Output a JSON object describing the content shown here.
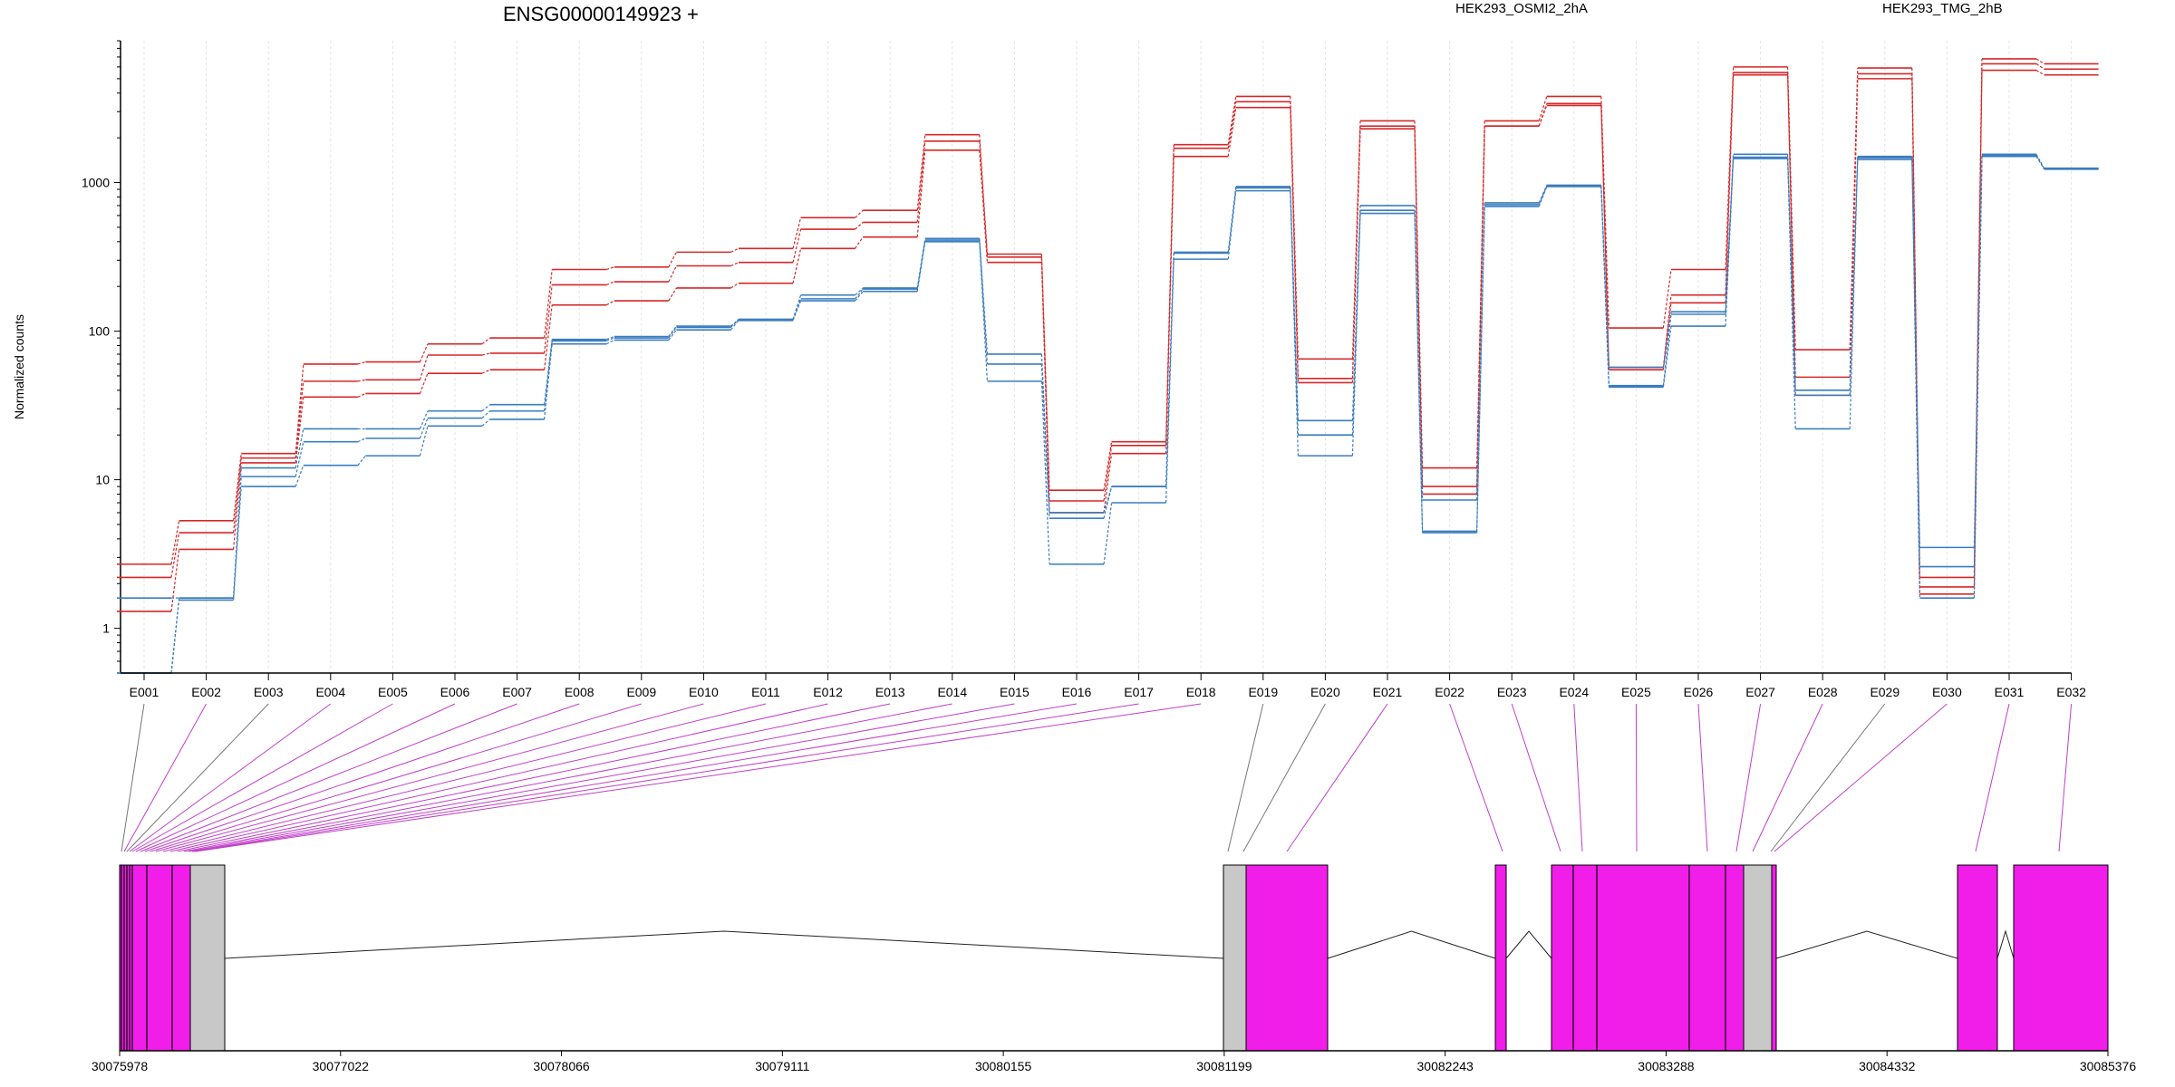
{
  "chart_data": {
    "type": "line",
    "title": "ENSG00000149923 +",
    "ylabel": "Normalized counts",
    "y_scale": "log",
    "ylim": [
      0.5,
      9000
    ],
    "y_ticks": [
      1,
      10,
      100,
      1000
    ],
    "y_tick_labels": [
      "1",
      "10",
      "100",
      "1000"
    ],
    "legend_placement": "top",
    "legend": [
      {
        "name": "HEK293_OSMI2_2hA",
        "color": "#d62728"
      },
      {
        "name": "HEK293_TMG_2hB",
        "color": "#3a7dbf"
      }
    ],
    "categories": [
      "E001",
      "E002",
      "E003",
      "E004",
      "E005",
      "E006",
      "E007",
      "E008",
      "E009",
      "E010",
      "E011",
      "E012",
      "E013",
      "E014",
      "E015",
      "E016",
      "E017",
      "E018",
      "E019",
      "E020",
      "E021",
      "E022",
      "E023",
      "E024",
      "E025",
      "E026",
      "E027",
      "E028",
      "E029",
      "E030",
      "E031",
      "E032"
    ],
    "series": [
      {
        "group": "HEK293_OSMI2_2hA",
        "color": "#d62728",
        "values": [
          2.7,
          5.3,
          15,
          60,
          62,
          82,
          90,
          260,
          270,
          340,
          360,
          580,
          650,
          2100,
          330,
          8.5,
          18,
          1800,
          3800,
          65,
          2600,
          12,
          2600,
          3800,
          105,
          260,
          6000,
          75,
          5900,
          2.2,
          6800,
          6300
        ]
      },
      {
        "group": "HEK293_OSMI2_2hA",
        "color": "#d62728",
        "values": [
          2.2,
          4.4,
          14,
          46,
          47,
          69,
          71,
          205,
          215,
          275,
          290,
          485,
          540,
          1900,
          315,
          7.2,
          17,
          1700,
          3500,
          48,
          2400,
          9,
          2400,
          3400,
          57,
          175,
          5500,
          49,
          5400,
          1.9,
          6300,
          5800
        ]
      },
      {
        "group": "HEK293_OSMI2_2hA",
        "color": "#d62728",
        "values": [
          1.3,
          3.4,
          13,
          36,
          38,
          52,
          55,
          150,
          160,
          195,
          210,
          360,
          430,
          1650,
          290,
          6,
          15,
          1500,
          3200,
          45,
          2300,
          8,
          2400,
          3300,
          55,
          155,
          5300,
          37,
          5000,
          1.7,
          5700,
          5300
        ]
      },
      {
        "group": "HEK293_TMG_2hB",
        "color": "#3a7dbf",
        "values": [
          1.6,
          1.6,
          12,
          22,
          22,
          29,
          32,
          88,
          92,
          108,
          120,
          175,
          195,
          420,
          70,
          6,
          9,
          340,
          940,
          25,
          700,
          7.3,
          730,
          960,
          57,
          135,
          1550,
          40,
          1500,
          3.5,
          1550,
          1250
        ]
      },
      {
        "group": "HEK293_TMG_2hB",
        "color": "#3a7dbf",
        "values": [
          0.5,
          1.6,
          10.5,
          18,
          19,
          26,
          29,
          86,
          90,
          106,
          120,
          165,
          192,
          410,
          60,
          5.5,
          9,
          335,
          920,
          20,
          650,
          4.5,
          710,
          950,
          43,
          130,
          1480,
          37,
          1470,
          2.6,
          1520,
          1240
        ]
      },
      {
        "group": "HEK293_TMG_2hB",
        "color": "#3a7dbf",
        "values": [
          0.5,
          1.55,
          9,
          12.5,
          14.5,
          23,
          25.5,
          82,
          87,
          102,
          118,
          160,
          185,
          400,
          46,
          2.7,
          7,
          305,
          880,
          14.5,
          620,
          4.4,
          690,
          940,
          42,
          108,
          1450,
          22,
          1430,
          1.6,
          1500,
          1230
        ]
      }
    ],
    "gene_axis": {
      "tick_labels": [
        "30075978",
        "30077022",
        "30078066",
        "30079111",
        "30080155",
        "30081199",
        "30082243",
        "30083288",
        "30084332",
        "30085376"
      ]
    }
  }
}
